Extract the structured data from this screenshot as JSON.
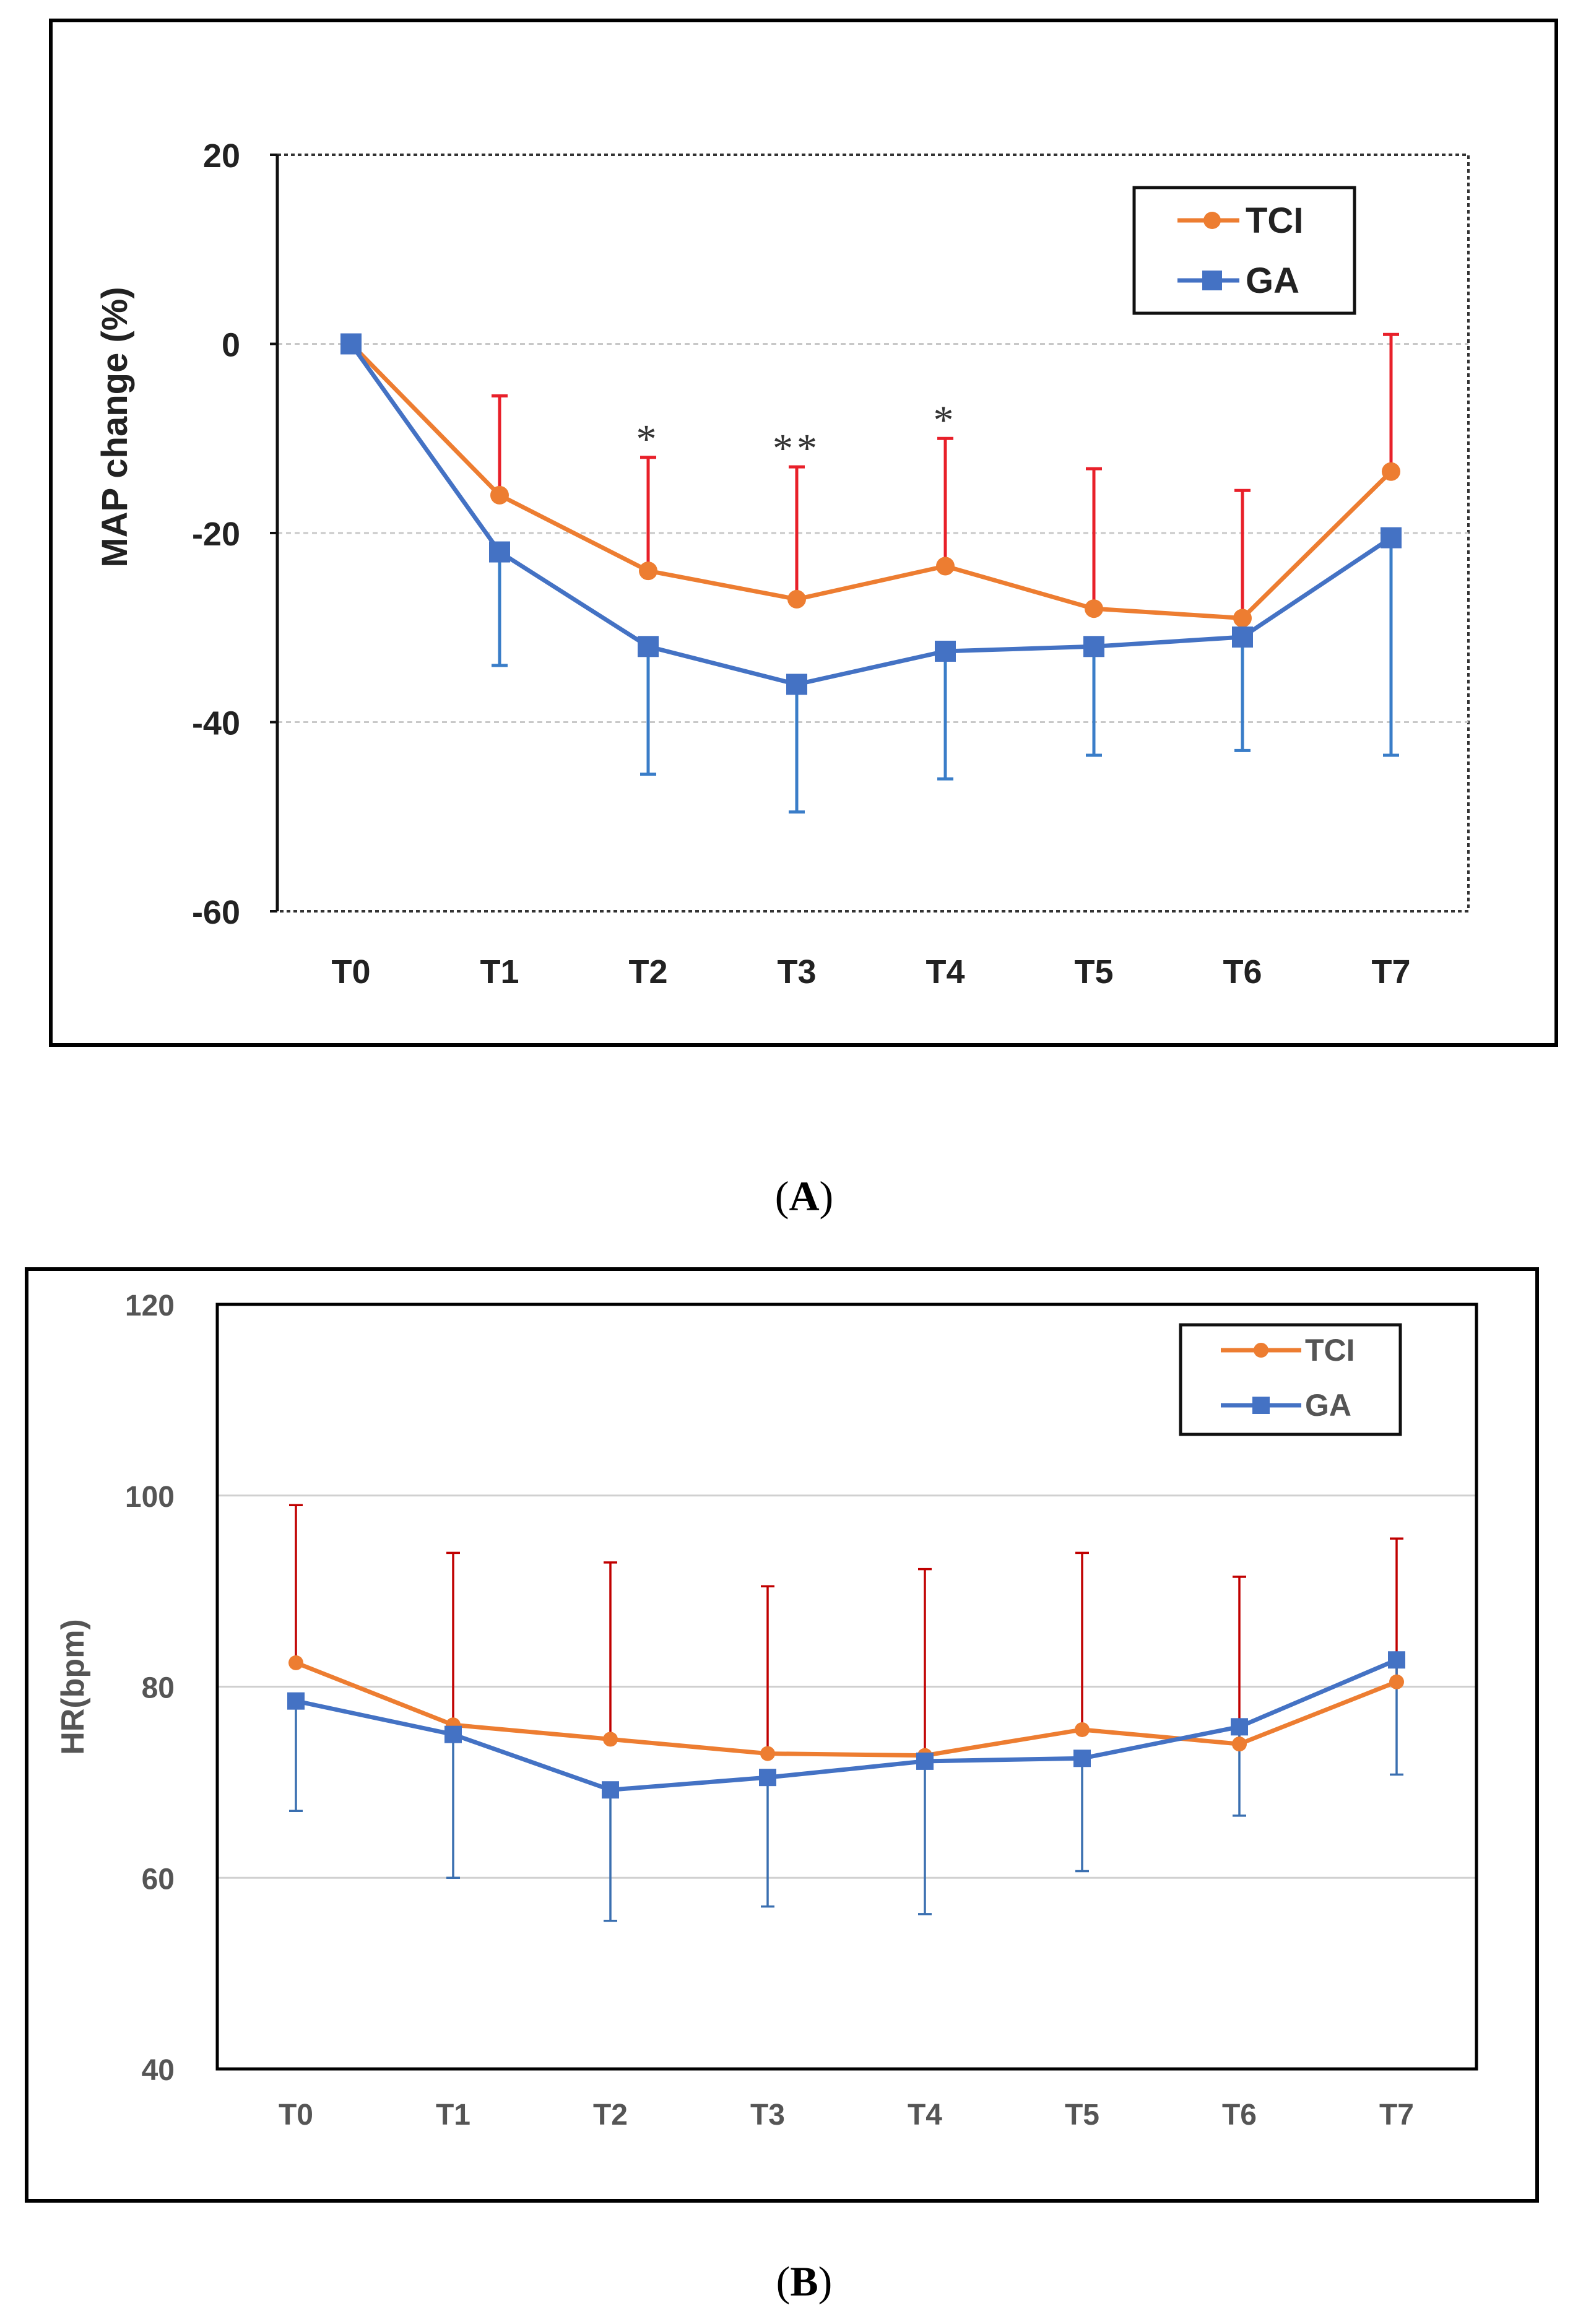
{
  "chart_data": [
    {
      "id": "A",
      "type": "line",
      "caption": "A",
      "ylabel": "MAP change (%)",
      "xlabel": "",
      "categories": [
        "T0",
        "T1",
        "T2",
        "T3",
        "T4",
        "T5",
        "T6",
        "T7"
      ],
      "ylim": [
        -60,
        20
      ],
      "yticks": [
        20,
        0,
        -20,
        -40,
        -60
      ],
      "grid": true,
      "legend_position": "top-right",
      "series": [
        {
          "name": "TCI",
          "color": "#ED7D31",
          "marker": "circle",
          "error_color": "#E8202A",
          "error_direction": "up",
          "values": [
            0,
            -16,
            -24,
            -27,
            -23.5,
            -28,
            -29,
            -13.5
          ],
          "errors": [
            0,
            10.5,
            12,
            14,
            13.5,
            14.8,
            13.5,
            14.5
          ]
        },
        {
          "name": "GA",
          "color": "#4472C4",
          "marker": "square",
          "error_color": "#3A7DC8",
          "error_direction": "down",
          "values": [
            0,
            -22,
            -32,
            -36,
            -32.5,
            -32,
            -31,
            -20.5
          ],
          "errors": [
            0,
            12,
            13.5,
            13.5,
            13.5,
            11.5,
            12,
            23
          ]
        }
      ],
      "annotations": [
        {
          "category": "T2",
          "text": "*"
        },
        {
          "category": "T3",
          "text": "**"
        },
        {
          "category": "T4",
          "text": "*"
        }
      ]
    },
    {
      "id": "B",
      "type": "line",
      "caption": "B",
      "ylabel": "HR(bpm)",
      "xlabel": "",
      "categories": [
        "T0",
        "T1",
        "T2",
        "T3",
        "T4",
        "T5",
        "T6",
        "T7"
      ],
      "ylim": [
        40,
        120
      ],
      "yticks": [
        120,
        100,
        80,
        60,
        40
      ],
      "grid": true,
      "legend_position": "top-right",
      "series": [
        {
          "name": "TCI",
          "color": "#ED7D31",
          "marker": "circle",
          "error_color": "#C00000",
          "error_direction": "up",
          "values": [
            82.5,
            76,
            74.5,
            73,
            72.8,
            75.5,
            74,
            80.5
          ],
          "errors": [
            16.5,
            18,
            18.5,
            17.5,
            19.5,
            18.5,
            17.5,
            15
          ]
        },
        {
          "name": "GA",
          "color": "#4472C4",
          "marker": "square",
          "error_color": "#3A6FB0",
          "error_direction": "down",
          "values": [
            78.5,
            75,
            69.2,
            70.5,
            72.2,
            72.5,
            75.8,
            82.8
          ],
          "errors": [
            11.5,
            15,
            13.7,
            13.5,
            16,
            11.8,
            9.3,
            12
          ]
        }
      ],
      "annotations": []
    }
  ]
}
